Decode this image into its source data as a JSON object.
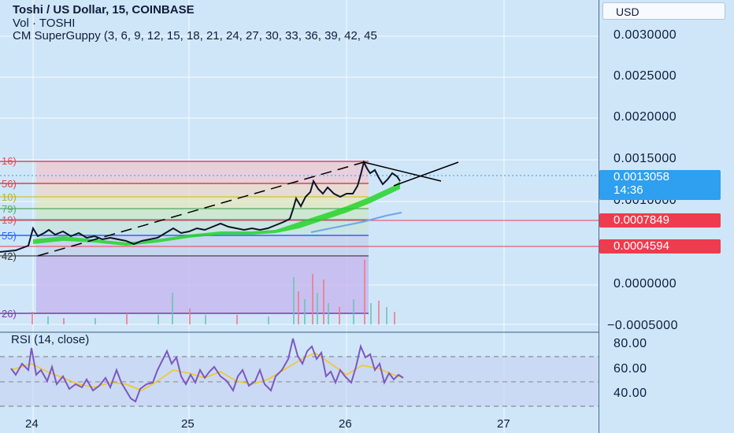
{
  "header": {
    "symbol_line": "Toshi / US Dollar, 15, COINBASE",
    "volume_line": "Vol · TOSHI",
    "indicator_line": "CM SuperGuppy (3, 6, 9, 12, 15, 18, 21, 24, 27, 30, 33, 36, 39, 42, 45"
  },
  "rsi": {
    "title": "RSI (14, close)",
    "ticks": [
      "80.00",
      "60.00",
      "40.00"
    ]
  },
  "price_axis": {
    "currency": "USD",
    "ticks": [
      "0.0030000",
      "0.0025000",
      "0.0020000",
      "0.0015000",
      "0.0010000",
      "0.0000000",
      "−0.0005000"
    ],
    "current_price": "0.0013058",
    "countdown": "14:36",
    "level1": "0.0007849",
    "level2": "0.0004594"
  },
  "time_axis": {
    "labels": [
      "24",
      "25",
      "26",
      "27"
    ]
  },
  "fib_labels": [
    "16)",
    "56)",
    "10)",
    "79)",
    "19)",
    "55)",
    "42)",
    "26)"
  ],
  "colors": {
    "background": "#cfe6f9",
    "red_level": "#ef3b4e",
    "current_price_tag": "#2f9fef",
    "fib_blue": "#2962ff",
    "rsi_line": "#7e57c2",
    "rsi_ma": "#f5c518"
  }
}
